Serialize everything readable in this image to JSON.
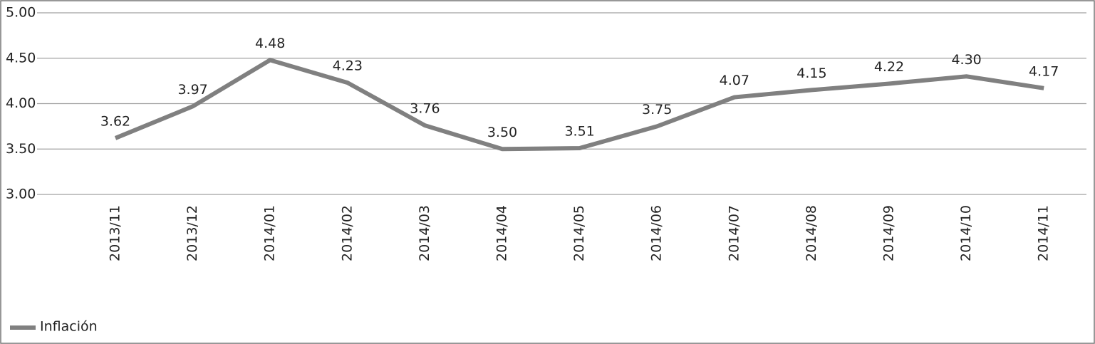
{
  "chart_data": {
    "type": "line",
    "categories": [
      "2013/11",
      "2013/12",
      "2014/01",
      "2014/02",
      "2014/03",
      "2014/04",
      "2014/05",
      "2014/06",
      "2014/07",
      "2014/08",
      "2014/09",
      "2014/10",
      "2014/11"
    ],
    "series": [
      {
        "name": "Inflación",
        "color": "#808080",
        "values": [
          3.62,
          3.97,
          4.48,
          4.23,
          3.76,
          3.5,
          3.51,
          3.75,
          4.07,
          4.15,
          4.22,
          4.3,
          4.17
        ],
        "value_labels": [
          "3.62",
          "3.97",
          "4.48",
          "4.23",
          "3.76",
          "3.50",
          "3.51",
          "3.75",
          "4.07",
          "4.15",
          "4.22",
          "4.30",
          "4.17"
        ]
      }
    ],
    "ylim": [
      3,
      5
    ],
    "yticks": [
      {
        "value": 3,
        "label": "3.00"
      },
      {
        "value": 3.5,
        "label": "3.50"
      },
      {
        "value": 4,
        "label": "4.00"
      },
      {
        "value": 4.5,
        "label": "4.50"
      },
      {
        "value": 5,
        "label": "5.00"
      }
    ],
    "grid": true,
    "legend": "bottom-left"
  }
}
